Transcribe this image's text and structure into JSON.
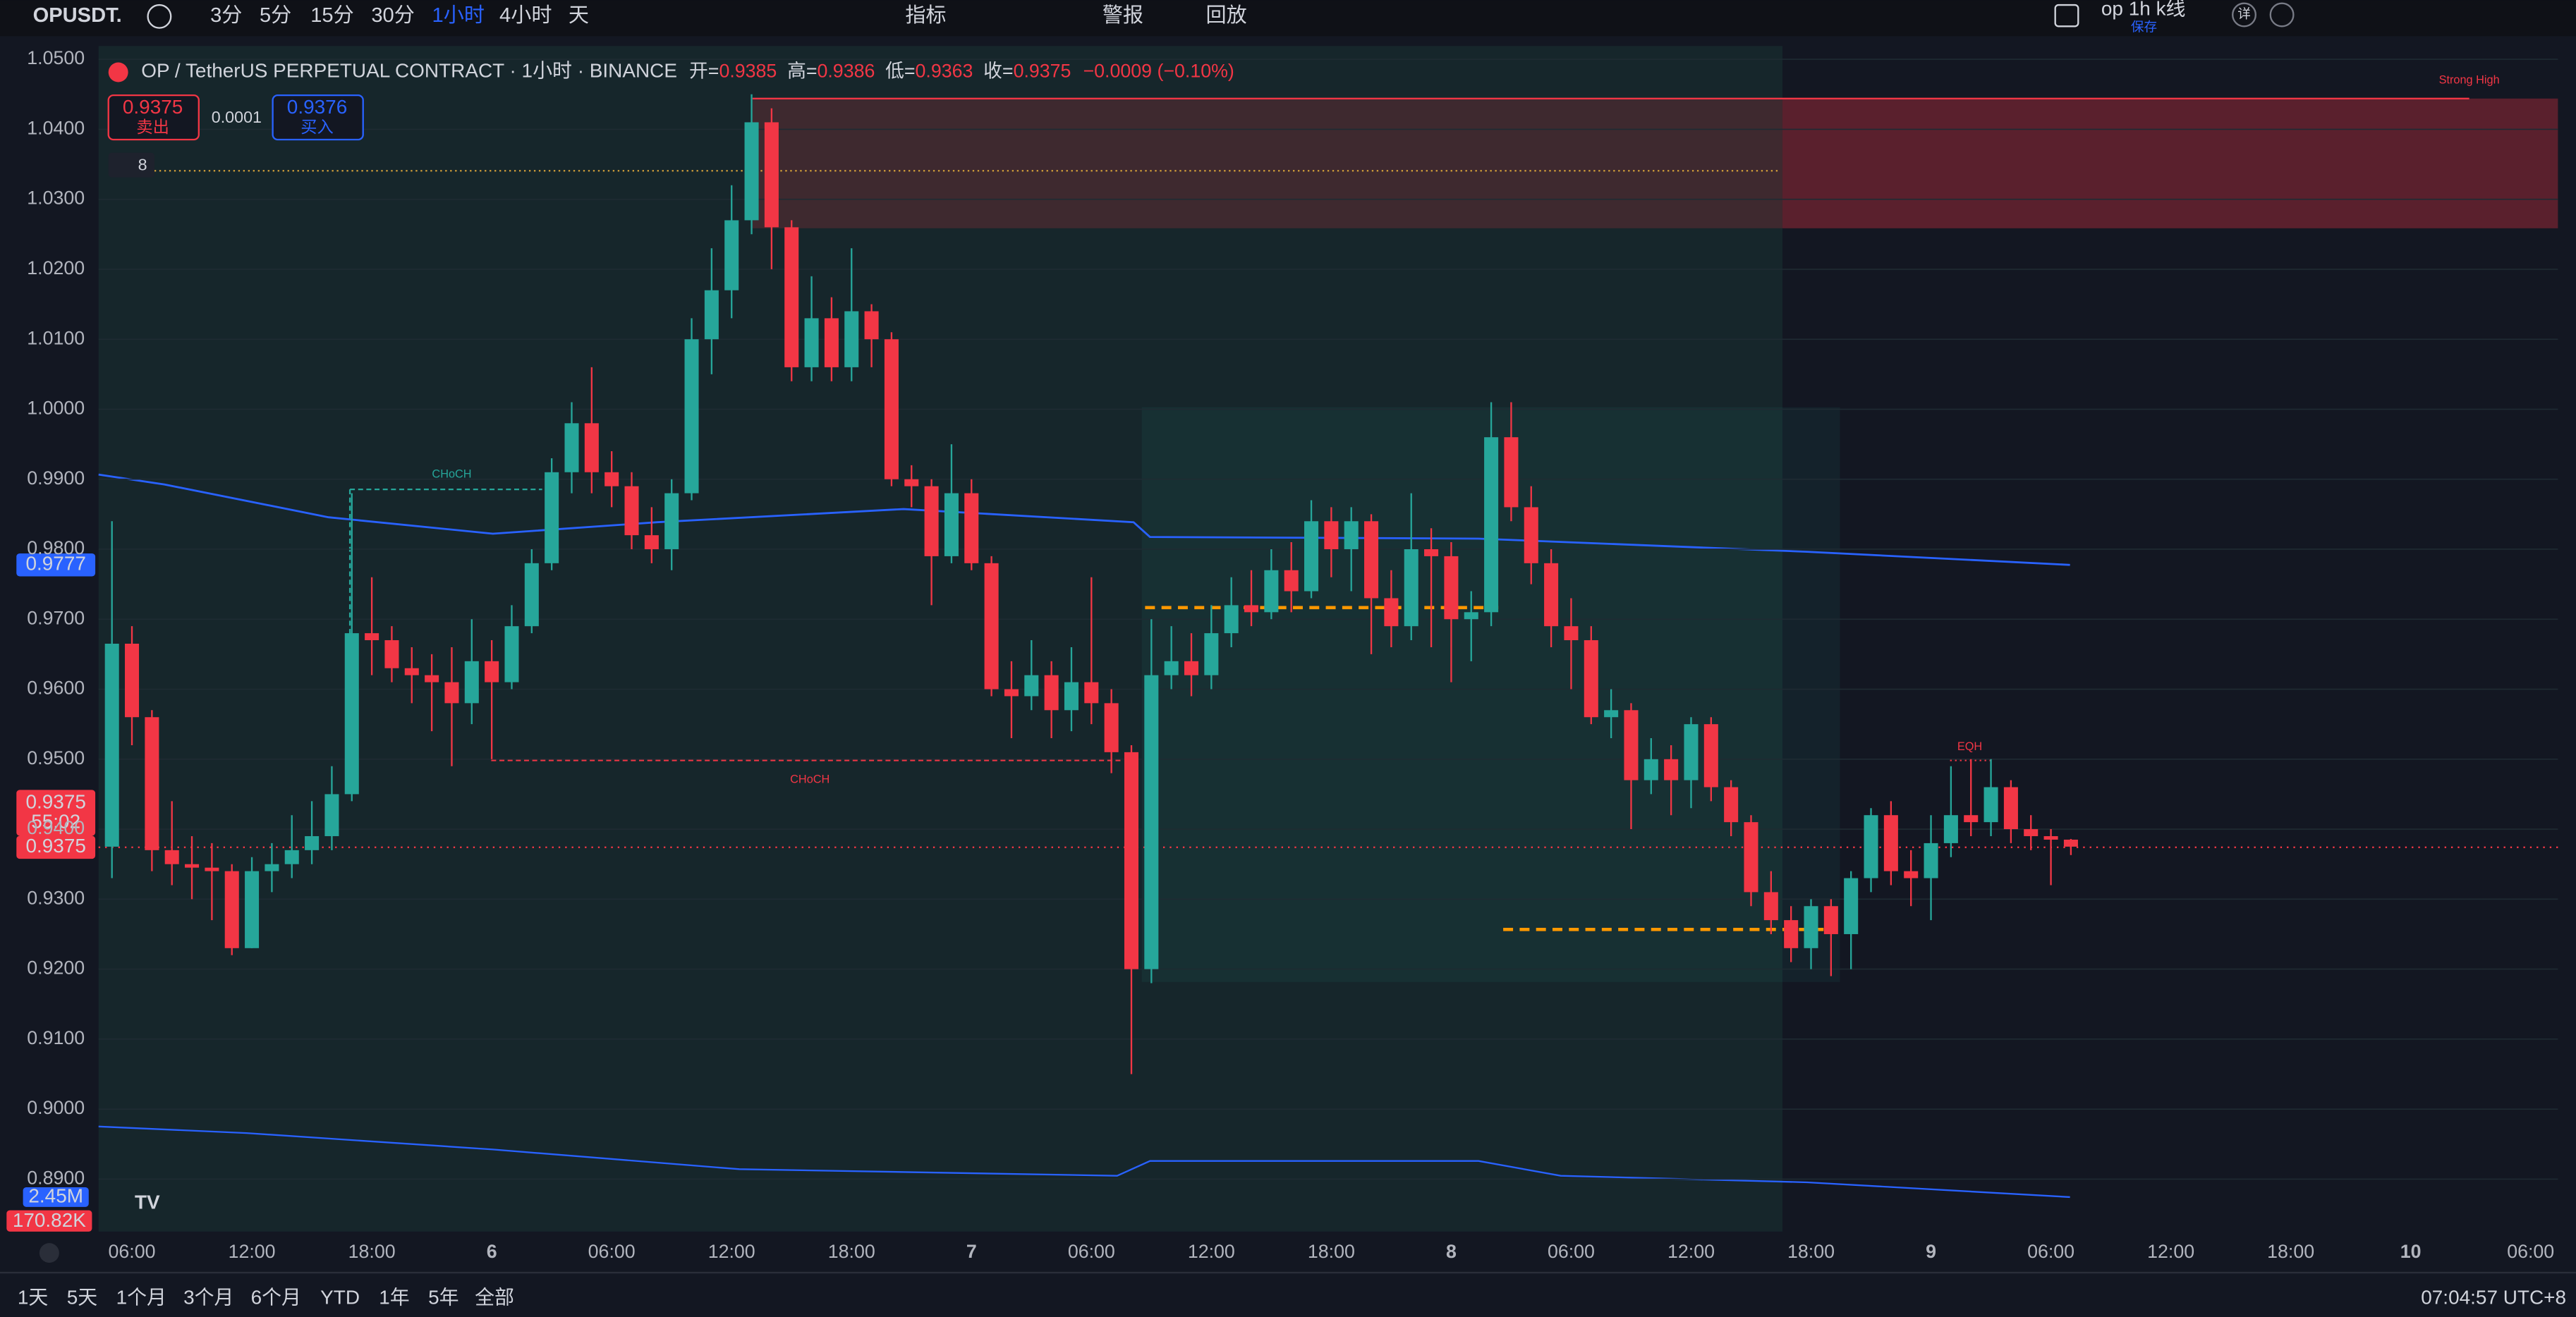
{
  "toolbar": {
    "symbol": "OPUSDT.",
    "intervals": [
      "3分",
      "5分",
      "15分",
      "30分",
      "1小时",
      "4小时",
      "天"
    ],
    "indicators": "指标",
    "alert": "警报",
    "replay": "回放",
    "layout_name": "op 1h k线",
    "save": "保存",
    "detail": "详"
  },
  "legend": {
    "title": "OP / TetherUS PERPETUAL CONTRACT · 1小时 · BINANCE",
    "open_label": "开=",
    "open": "0.9385",
    "high_label": "高=",
    "high": "0.9386",
    "low_label": "低=",
    "low": "0.9363",
    "close_label": "收=",
    "close": "0.9375",
    "change": "−0.0009 (−0.10%)",
    "sell_price": "0.9375",
    "sell": "卖出",
    "spread": "0.0001",
    "buy_price": "0.9376",
    "buy": "买入",
    "indicator_count": "8"
  },
  "chart_data": {
    "type": "candlestick",
    "up_color": "#26a69a",
    "down_color": "#f23645",
    "categories": [
      null,
      "06:00",
      null,
      null,
      null,
      null,
      null,
      "12:00",
      null,
      null,
      null,
      null,
      null,
      "18:00",
      null,
      null,
      null,
      null,
      null,
      "6",
      null,
      null,
      null,
      null,
      null,
      "06:00",
      null,
      null,
      null,
      null,
      null,
      "12:00",
      null,
      null,
      null,
      null,
      null,
      "18:00",
      null,
      null,
      null,
      null,
      null,
      "7",
      null,
      null,
      null,
      null,
      null,
      "06:00",
      null,
      null,
      null,
      null,
      null,
      "12:00",
      null,
      null,
      null,
      null,
      null,
      "18:00",
      null,
      null,
      null,
      null,
      null,
      "8",
      null,
      null,
      null,
      null,
      null,
      "06:00",
      null,
      null,
      null,
      null,
      null,
      "12:00",
      null,
      null,
      null,
      null,
      null,
      "18:00",
      null,
      null,
      null,
      null,
      null,
      "9",
      null,
      null,
      null,
      null,
      null,
      "06:00",
      null,
      null,
      null,
      null,
      null,
      "12:00",
      null,
      null,
      null,
      null,
      null,
      "18:00",
      null,
      null,
      null,
      null,
      null,
      "10",
      null,
      null,
      null,
      null,
      null,
      "06:00"
    ],
    "open": [
      0.9375,
      0.9665,
      0.956,
      0.937,
      0.935,
      0.9345,
      0.934,
      0.923,
      0.934,
      0.935,
      0.937,
      0.939,
      0.945,
      0.968,
      0.967,
      0.963,
      0.962,
      0.961,
      0.958,
      0.964,
      0.961,
      0.969,
      0.978,
      0.991,
      0.998,
      0.991,
      0.989,
      0.982,
      0.98,
      0.988,
      1.01,
      1.017,
      1.027,
      1.041,
      1.026,
      1.006,
      1.013,
      1.006,
      1.014,
      1.01,
      0.99,
      0.989,
      0.979,
      0.988,
      0.978,
      0.96,
      0.959,
      0.962,
      0.957,
      0.961,
      0.958,
      0.951,
      0.92,
      0.962,
      0.964,
      0.962,
      0.968,
      0.972,
      0.971,
      0.977,
      0.974,
      0.984,
      0.98,
      0.984,
      0.973,
      0.969,
      0.98,
      0.979,
      0.97,
      0.971,
      0.996,
      0.986,
      0.978,
      0.969,
      0.967,
      0.956,
      0.957,
      0.947,
      0.95,
      0.947,
      0.955,
      0.946,
      0.941,
      0.931,
      0.927,
      0.923,
      0.929,
      0.925,
      0.933,
      0.942,
      0.934,
      0.933,
      0.938,
      0.942,
      0.941,
      0.946,
      0.94,
      0.939,
      0.9385,
      null,
      null,
      null,
      null,
      null,
      null,
      null,
      null,
      null,
      null,
      null,
      null,
      null,
      null,
      null,
      null,
      null,
      null,
      null,
      null,
      null,
      null,
      null
    ],
    "high": [
      0.984,
      0.969,
      0.957,
      0.944,
      0.939,
      0.938,
      0.935,
      0.936,
      0.938,
      0.942,
      0.944,
      0.949,
      0.988,
      0.976,
      0.969,
      0.966,
      0.965,
      0.966,
      0.97,
      0.967,
      0.972,
      0.98,
      0.993,
      1.001,
      1.006,
      0.994,
      0.991,
      0.986,
      0.99,
      1.013,
      1.023,
      1.032,
      1.045,
      1.043,
      1.027,
      1.019,
      1.016,
      1.023,
      1.015,
      1.011,
      0.992,
      0.99,
      0.995,
      0.99,
      0.979,
      0.964,
      0.967,
      0.964,
      0.966,
      0.976,
      0.96,
      0.952,
      0.97,
      0.969,
      0.968,
      0.972,
      0.976,
      0.977,
      0.98,
      0.981,
      0.987,
      0.986,
      0.986,
      0.985,
      0.977,
      0.988,
      0.983,
      0.981,
      0.974,
      1.001,
      1.001,
      0.989,
      0.98,
      0.973,
      0.969,
      0.96,
      0.958,
      0.953,
      0.952,
      0.956,
      0.956,
      0.947,
      0.942,
      0.934,
      0.929,
      0.93,
      0.93,
      0.934,
      0.943,
      0.944,
      0.937,
      0.942,
      0.949,
      0.95,
      0.95,
      0.947,
      0.942,
      0.94,
      0.9386,
      null,
      null,
      null,
      null,
      null,
      null,
      null,
      null,
      null,
      null,
      null,
      null,
      null,
      null,
      null,
      null,
      null,
      null,
      null,
      null,
      null,
      null,
      null
    ],
    "low": [
      0.933,
      0.952,
      0.934,
      0.932,
      0.93,
      0.927,
      0.922,
      0.923,
      0.931,
      0.933,
      0.935,
      0.937,
      0.944,
      0.962,
      0.961,
      0.958,
      0.954,
      0.949,
      0.955,
      0.95,
      0.96,
      0.968,
      0.977,
      0.988,
      0.988,
      0.986,
      0.98,
      0.978,
      0.977,
      0.987,
      1.005,
      1.013,
      1.025,
      1.02,
      1.004,
      1.004,
      1.004,
      1.004,
      1.006,
      0.989,
      0.986,
      0.972,
      0.978,
      0.977,
      0.959,
      0.953,
      0.957,
      0.953,
      0.954,
      0.955,
      0.948,
      0.905,
      0.918,
      0.96,
      0.959,
      0.96,
      0.966,
      0.969,
      0.97,
      0.971,
      0.973,
      0.976,
      0.974,
      0.965,
      0.966,
      0.967,
      0.966,
      0.961,
      0.964,
      0.969,
      0.984,
      0.975,
      0.966,
      0.96,
      0.955,
      0.953,
      0.94,
      0.945,
      0.942,
      0.943,
      0.944,
      0.939,
      0.929,
      0.925,
      0.921,
      0.92,
      0.919,
      0.92,
      0.931,
      0.932,
      0.929,
      0.927,
      0.936,
      0.939,
      0.939,
      0.938,
      0.937,
      0.932,
      0.9363,
      null,
      null,
      null,
      null,
      null,
      null,
      null,
      null,
      null,
      null,
      null,
      null,
      null,
      null,
      null,
      null,
      null,
      null,
      null,
      null,
      null,
      null,
      null
    ],
    "close": [
      0.9665,
      0.956,
      0.937,
      0.935,
      0.9345,
      0.934,
      0.923,
      0.934,
      0.935,
      0.937,
      0.939,
      0.945,
      0.968,
      0.967,
      0.963,
      0.962,
      0.961,
      0.958,
      0.964,
      0.961,
      0.969,
      0.978,
      0.991,
      0.998,
      0.991,
      0.989,
      0.982,
      0.98,
      0.988,
      1.01,
      1.017,
      1.027,
      1.041,
      1.026,
      1.006,
      1.013,
      1.006,
      1.014,
      1.01,
      0.99,
      0.989,
      0.979,
      0.988,
      0.978,
      0.96,
      0.959,
      0.962,
      0.957,
      0.961,
      0.958,
      0.951,
      0.92,
      0.962,
      0.964,
      0.962,
      0.968,
      0.972,
      0.971,
      0.977,
      0.974,
      0.984,
      0.98,
      0.984,
      0.973,
      0.969,
      0.98,
      0.979,
      0.97,
      0.971,
      0.996,
      0.986,
      0.978,
      0.969,
      0.967,
      0.956,
      0.957,
      0.947,
      0.95,
      0.947,
      0.955,
      0.946,
      0.941,
      0.931,
      0.927,
      0.923,
      0.929,
      0.925,
      0.933,
      0.942,
      0.934,
      0.933,
      0.938,
      0.942,
      0.941,
      0.946,
      0.94,
      0.939,
      0.9385,
      0.9375,
      null,
      null,
      null,
      null,
      null,
      null,
      null,
      null,
      null,
      null,
      null,
      null,
      null,
      null,
      null,
      null,
      null,
      null,
      null,
      null,
      null,
      null,
      null
    ],
    "xlim": [
      -5.6,
      122.2
    ],
    "ylim": [
      0.8825,
      1.0519
    ],
    "yticks": [
      {
        "value": 0.89,
        "label": "0.8900"
      },
      {
        "value": 0.9,
        "label": "0.9000"
      },
      {
        "value": 0.91,
        "label": "0.9100"
      },
      {
        "value": 0.92,
        "label": "0.9200"
      },
      {
        "value": 0.93,
        "label": "0.9300"
      },
      {
        "value": 0.94,
        "label": "0.9400"
      },
      {
        "value": 0.95,
        "label": "0.9500"
      },
      {
        "value": 0.96,
        "label": "0.9600"
      },
      {
        "value": 0.97,
        "label": "0.9700"
      },
      {
        "value": 0.98,
        "label": "0.9800"
      },
      {
        "value": 0.99,
        "label": "0.9900"
      },
      {
        "value": 1.0,
        "label": "1.0000"
      },
      {
        "value": 1.01,
        "label": "1.0100"
      },
      {
        "value": 1.02,
        "label": "1.0200"
      },
      {
        "value": 1.03,
        "label": "1.0300"
      },
      {
        "value": 1.04,
        "label": "1.0400"
      },
      {
        "value": 1.05,
        "label": "1.0500"
      }
    ],
    "grid": true,
    "annotations": [
      "CHoCH",
      "CHoCH",
      "Strong High",
      "EQH"
    ],
    "axis_labels": [
      "0.9777",
      "0.9375",
      "55:02",
      "0.9375",
      "2.45M",
      "170.82K"
    ]
  },
  "ranges": [
    "1天",
    "5天",
    "1个月",
    "3个月",
    "6个月",
    "YTD",
    "1年",
    "5年",
    "全部"
  ],
  "clock": "07:04:57 UTC+8"
}
